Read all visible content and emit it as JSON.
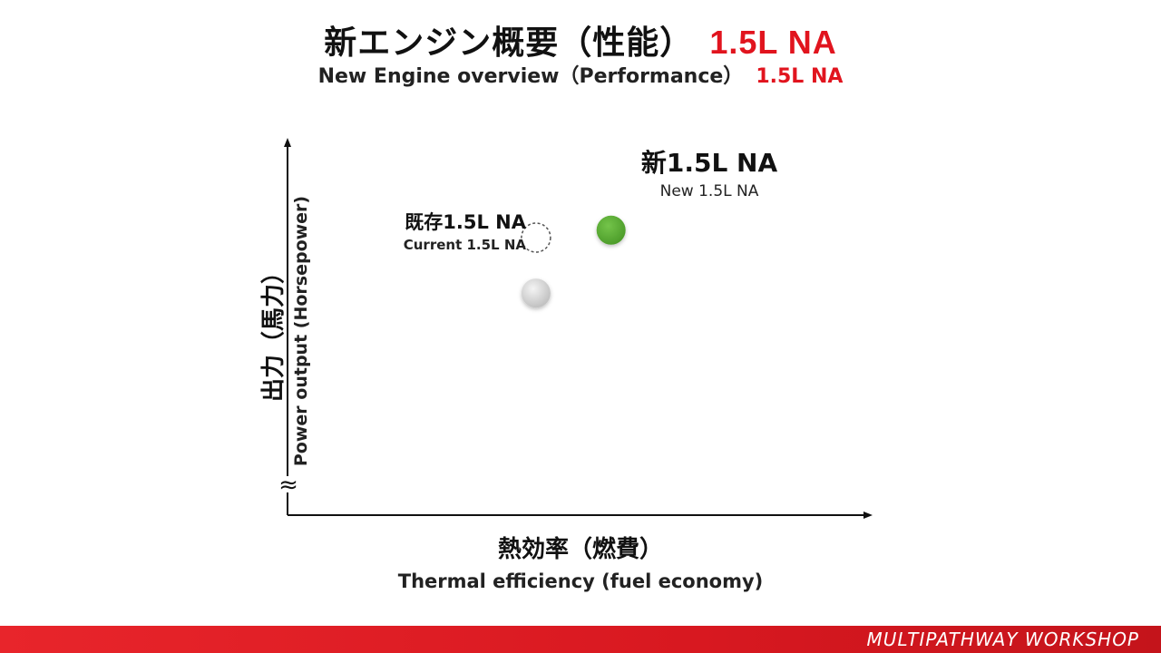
{
  "title": {
    "jp_main": "新エンジン概要（性能）",
    "jp_accent": "1.5L NA",
    "en_main": "New Engine overview（Performance）",
    "en_accent": "1.5L NA"
  },
  "colors": {
    "accent": "#e1141e",
    "new_point": "#5aaa32",
    "current_point": "#d4d4d4",
    "axis": "#111111",
    "footer": "#d81820"
  },
  "chart_data": {
    "type": "scatter",
    "title": "",
    "xlabel": "熱効率（燃費）",
    "xlabel_en": "Thermal efficiency (fuel economy)",
    "ylabel": "出力（馬力）",
    "ylabel_en": "Power output (Horsepower)",
    "axis_break_symbol": "≈",
    "xlim": [
      0,
      100
    ],
    "ylim": [
      0,
      100
    ],
    "grid": false,
    "points": [
      {
        "id": "current-outline",
        "label_jp": "既存1.5L NA",
        "label_en": "Current 1.5L NA",
        "x": 43,
        "y": 75,
        "style": "dashed-outline"
      },
      {
        "id": "current",
        "x": 43,
        "y": 60,
        "style": "gray-filled"
      },
      {
        "id": "new",
        "label_jp": "新1.5L NA",
        "label_en": "New 1.5L NA",
        "x": 56,
        "y": 77,
        "style": "green-filled"
      }
    ]
  },
  "footer": {
    "brand": "MULTIPATHWAY WORKSHOP"
  }
}
